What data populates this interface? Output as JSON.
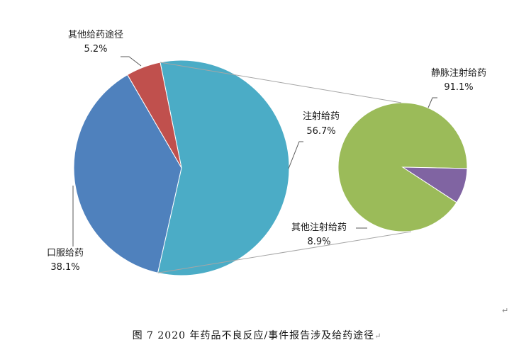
{
  "chart_data": [
    {
      "type": "pie",
      "categories": [
        "注射给药",
        "口服给药",
        "其他给药途径"
      ],
      "values": [
        56.7,
        38.1,
        5.2
      ],
      "value_labels": [
        "56.7%",
        "38.1%",
        "5.2%"
      ],
      "colors": [
        "#4bacc6",
        "#4f81bd",
        "#c0504d"
      ]
    },
    {
      "type": "pie",
      "categories": [
        "静脉注射给药",
        "其他注射给药"
      ],
      "values": [
        91.1,
        8.9
      ],
      "value_labels": [
        "91.1%",
        "8.9%"
      ],
      "colors": [
        "#9bbb59",
        "#8064a2"
      ]
    }
  ],
  "caption": {
    "text": "图 7   2020 年药品不良反应/事件报告涉及给药途径",
    "mark": "↵"
  },
  "paragraph_mark": "↵"
}
